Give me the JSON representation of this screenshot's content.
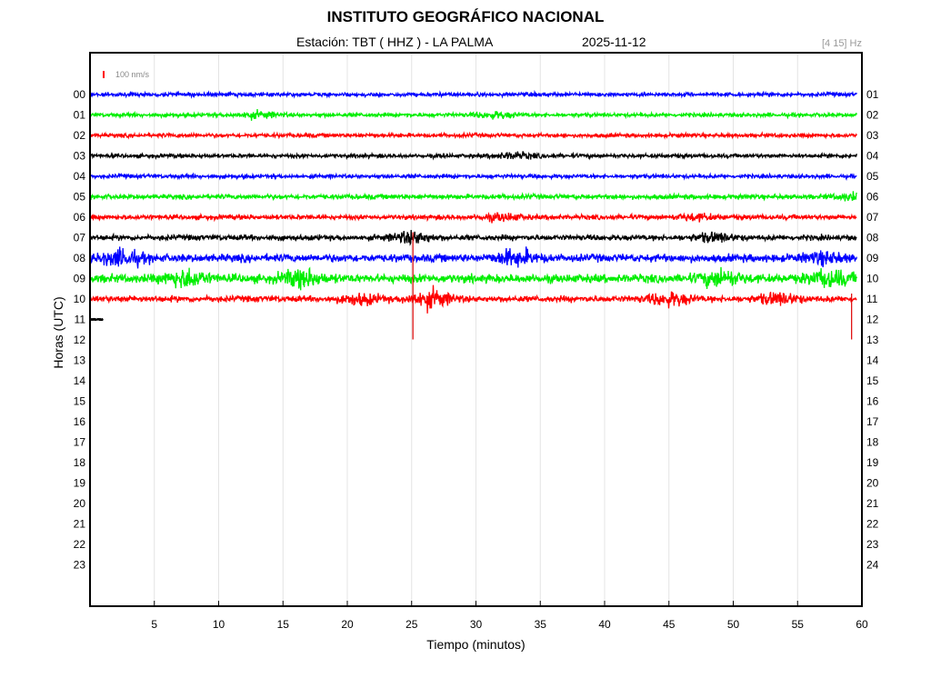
{
  "header": {
    "title": "INSTITUTO GEOGRÁFICO NACIONAL",
    "station_label": "Estación:  TBT ( HHZ ) - LA PALMA",
    "date": "2025-11-12",
    "filter_band": "[4 15] Hz"
  },
  "chart_data": {
    "type": "line",
    "subtype": "helicorder",
    "xlabel": "Tiempo (minutos)",
    "ylabel": "Horas (UTC)",
    "xlim": [
      0,
      60
    ],
    "x_ticks": [
      5,
      10,
      15,
      20,
      25,
      30,
      35,
      40,
      45,
      50,
      55,
      60
    ],
    "y_labels_left": [
      "00",
      "01",
      "02",
      "03",
      "04",
      "05",
      "06",
      "07",
      "08",
      "09",
      "10",
      "11",
      "12",
      "13",
      "14",
      "15",
      "16",
      "17",
      "18",
      "19",
      "20",
      "21",
      "22",
      "23"
    ],
    "y_labels_right": [
      "01",
      "02",
      "03",
      "04",
      "05",
      "06",
      "07",
      "08",
      "09",
      "10",
      "11",
      "12",
      "13",
      "14",
      "15",
      "16",
      "17",
      "18",
      "19",
      "20",
      "21",
      "22",
      "23",
      "24"
    ],
    "scale_label": "100 nm/s",
    "scale_color": "#ff0000",
    "trace_colors": [
      "#0000ff",
      "#00ee00",
      "#ff0000",
      "#000000"
    ],
    "grid": "vertical",
    "traces": [
      {
        "hour": "00",
        "color": "#0000ff",
        "amplitude": 1.0,
        "bursts": []
      },
      {
        "hour": "01",
        "color": "#00ee00",
        "amplitude": 1.0,
        "bursts": [
          {
            "minute": 13,
            "amp": 1.3
          },
          {
            "minute": 31.5,
            "amp": 1.3
          }
        ]
      },
      {
        "hour": "02",
        "color": "#ff0000",
        "amplitude": 1.0,
        "bursts": []
      },
      {
        "hour": "03",
        "color": "#000000",
        "amplitude": 1.0,
        "bursts": [
          {
            "minute": 33,
            "amp": 1.3
          }
        ]
      },
      {
        "hour": "04",
        "color": "#0000ff",
        "amplitude": 1.0,
        "bursts": []
      },
      {
        "hour": "05",
        "color": "#00ee00",
        "amplitude": 1.2,
        "bursts": [
          {
            "minute": 59.5,
            "amp": 1.5
          }
        ]
      },
      {
        "hour": "06",
        "color": "#ff0000",
        "amplitude": 1.2,
        "bursts": [
          {
            "minute": 32,
            "amp": 1.5
          },
          {
            "minute": 47,
            "amp": 1.3
          }
        ]
      },
      {
        "hour": "07",
        "color": "#000000",
        "amplitude": 1.4,
        "bursts": [
          {
            "minute": 25,
            "amp": 2.5
          },
          {
            "minute": 48.5,
            "amp": 1.8
          }
        ]
      },
      {
        "hour": "08",
        "color": "#0000ff",
        "amplitude": 2.0,
        "bursts": [
          {
            "minute": 2.5,
            "amp": 3.5
          },
          {
            "minute": 33,
            "amp": 3.5
          },
          {
            "minute": 57,
            "amp": 2.2
          }
        ]
      },
      {
        "hour": "09",
        "color": "#00ee00",
        "amplitude": 2.2,
        "bursts": [
          {
            "minute": 7.5,
            "amp": 4.0
          },
          {
            "minute": 16.5,
            "amp": 3.8
          },
          {
            "minute": 49,
            "amp": 3.5
          },
          {
            "minute": 57.5,
            "amp": 3.6
          }
        ]
      },
      {
        "hour": "10",
        "color": "#ff0000",
        "amplitude": 1.6,
        "bursts": [
          {
            "minute": 21,
            "amp": 2.2
          },
          {
            "minute": 26.5,
            "amp": 4.0
          },
          {
            "minute": 45,
            "amp": 3.0
          },
          {
            "minute": 53.5,
            "amp": 2.5
          }
        ]
      },
      {
        "hour": "11",
        "color": "#000000",
        "amplitude": 0.15,
        "bursts": []
      }
    ],
    "spikes": [
      {
        "minute": 25.1,
        "hour_from": "07",
        "hour_to": "11"
      },
      {
        "minute": 59.2,
        "hour_from": "10",
        "hour_to": "11"
      }
    ]
  }
}
